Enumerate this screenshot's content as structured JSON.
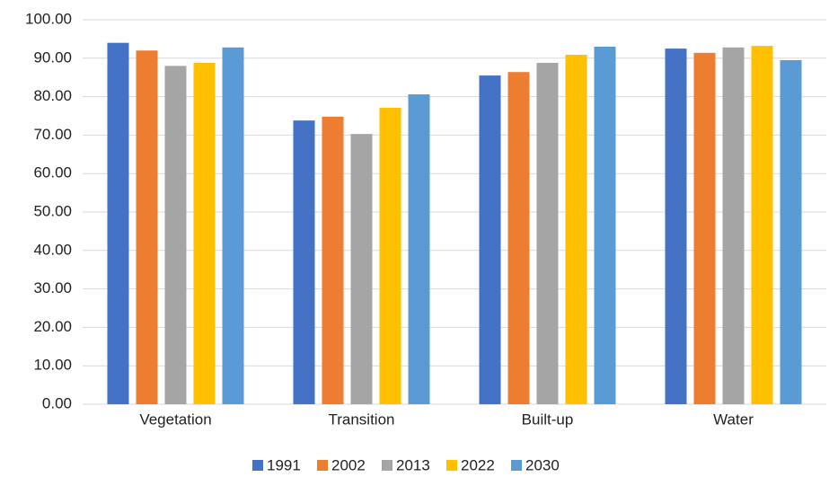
{
  "chart_data": {
    "type": "bar",
    "categories": [
      "Vegetation",
      "Transition",
      "Built-up",
      "Water"
    ],
    "series": [
      {
        "name": "1991",
        "color": "#4472c4",
        "values": [
          94.0,
          73.8,
          85.5,
          92.5
        ]
      },
      {
        "name": "2002",
        "color": "#ed7d31",
        "values": [
          92.0,
          74.8,
          86.4,
          91.4
        ]
      },
      {
        "name": "2013",
        "color": "#a5a5a5",
        "values": [
          88.0,
          70.3,
          88.8,
          92.8
        ]
      },
      {
        "name": "2022",
        "color": "#ffc000",
        "values": [
          88.8,
          77.1,
          90.9,
          93.2
        ]
      },
      {
        "name": "2030",
        "color": "#5b9bd5",
        "values": [
          92.8,
          80.6,
          93.0,
          89.5
        ]
      }
    ],
    "ylim": [
      0,
      100
    ],
    "yticks": [
      {
        "value": 0,
        "label": "0.00"
      },
      {
        "value": 10,
        "label": "10.00"
      },
      {
        "value": 20,
        "label": "20.00"
      },
      {
        "value": 30,
        "label": "30.00"
      },
      {
        "value": 40,
        "label": "40.00"
      },
      {
        "value": 50,
        "label": "50.00"
      },
      {
        "value": 60,
        "label": "60.00"
      },
      {
        "value": 70,
        "label": "70.00"
      },
      {
        "value": 80,
        "label": "80.00"
      },
      {
        "value": 90,
        "label": "90.00"
      },
      {
        "value": 100,
        "label": "100.00"
      }
    ],
    "grid": true,
    "legend": "bottom"
  }
}
